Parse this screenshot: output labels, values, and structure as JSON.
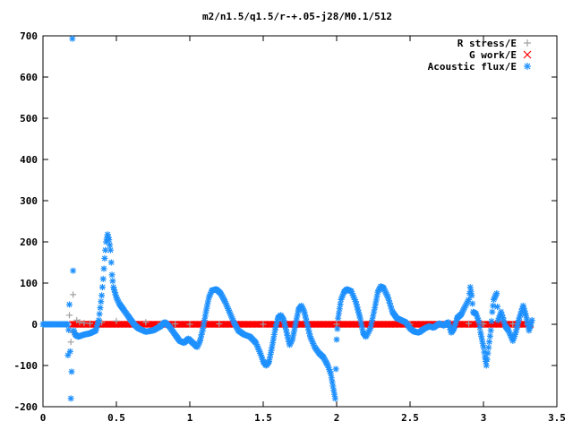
{
  "chart_data": {
    "type": "scatter",
    "title": "m2/n1.5/q1.5/r-+.05-j28/M0.1/512",
    "xlabel": "",
    "ylabel": "",
    "xlim": [
      0,
      3.5
    ],
    "ylim": [
      -200,
      700
    ],
    "xticks": [
      0,
      0.5,
      1,
      1.5,
      2,
      2.5,
      3,
      3.5
    ],
    "xtick_labels": [
      "0",
      "0.5",
      "1",
      "1.5",
      "2",
      "2.5",
      "3",
      "3.5"
    ],
    "yticks": [
      -200,
      -100,
      0,
      100,
      200,
      300,
      400,
      500,
      600,
      700
    ],
    "ytick_labels": [
      "-200",
      "-100",
      "0",
      "100",
      "200",
      "300",
      "400",
      "500",
      "600",
      "700"
    ],
    "grid": false,
    "legend_position": "top-right",
    "series": [
      {
        "name": "R stress/E",
        "marker": "plus",
        "color": "#a0a0a4",
        "points": [
          [
            0.18,
            22
          ],
          [
            0.19,
            -43
          ],
          [
            0.2,
            -20
          ],
          [
            0.205,
            72
          ],
          [
            0.21,
            -18
          ],
          [
            0.22,
            -22
          ],
          [
            0.23,
            10
          ],
          [
            0.25,
            5
          ],
          [
            0.28,
            3
          ],
          [
            0.32,
            2
          ],
          [
            0.4,
            5
          ],
          [
            0.5,
            8
          ],
          [
            0.6,
            6
          ],
          [
            0.7,
            5
          ],
          [
            0.8,
            2
          ],
          [
            0.9,
            1
          ],
          [
            1.0,
            0
          ],
          [
            1.2,
            1
          ],
          [
            1.5,
            0
          ],
          [
            2.0,
            0
          ],
          [
            2.5,
            0
          ],
          [
            2.9,
            2
          ],
          [
            3.0,
            1
          ],
          [
            3.2,
            1
          ],
          [
            3.3,
            0
          ]
        ]
      },
      {
        "name": "G work/E",
        "marker": "cross",
        "color": "#ff0000",
        "points": [
          [
            0.2,
            0
          ],
          [
            0.4,
            0
          ],
          [
            0.6,
            0
          ],
          [
            0.8,
            0
          ],
          [
            1.0,
            0
          ],
          [
            1.2,
            0
          ],
          [
            1.4,
            0
          ],
          [
            1.6,
            0
          ],
          [
            1.8,
            0
          ],
          [
            2.0,
            0
          ],
          [
            2.2,
            0
          ],
          [
            2.4,
            0
          ],
          [
            2.6,
            0
          ],
          [
            2.8,
            0
          ],
          [
            3.0,
            0
          ],
          [
            3.2,
            0
          ],
          [
            3.32,
            0
          ]
        ]
      },
      {
        "name": "Acoustic flux/E",
        "marker": "star",
        "color": "#1e90ff",
        "points": [
          [
            0.17,
            -75
          ],
          [
            0.18,
            48
          ],
          [
            0.19,
            -180
          ],
          [
            0.195,
            -115
          ],
          [
            0.2,
            693
          ],
          [
            0.205,
            130
          ],
          [
            0.21,
            -15
          ],
          [
            0.22,
            -25
          ],
          [
            0.24,
            -30
          ],
          [
            0.28,
            -25
          ],
          [
            0.32,
            -22
          ],
          [
            0.36,
            -15
          ],
          [
            0.38,
            10
          ],
          [
            0.4,
            70
          ],
          [
            0.41,
            110
          ],
          [
            0.42,
            160
          ],
          [
            0.43,
            200
          ],
          [
            0.44,
            218
          ],
          [
            0.45,
            205
          ],
          [
            0.46,
            180
          ],
          [
            0.47,
            120
          ],
          [
            0.48,
            90
          ],
          [
            0.5,
            65
          ],
          [
            0.52,
            50
          ],
          [
            0.55,
            35
          ],
          [
            0.58,
            20
          ],
          [
            0.6,
            10
          ],
          [
            0.62,
            0
          ],
          [
            0.65,
            -10
          ],
          [
            0.7,
            -18
          ],
          [
            0.75,
            -15
          ],
          [
            0.8,
            -5
          ],
          [
            0.83,
            5
          ],
          [
            0.86,
            -5
          ],
          [
            0.9,
            -25
          ],
          [
            0.93,
            -40
          ],
          [
            0.96,
            -45
          ],
          [
            0.99,
            -35
          ],
          [
            1.02,
            -45
          ],
          [
            1.05,
            -55
          ],
          [
            1.07,
            -40
          ],
          [
            1.09,
            -10
          ],
          [
            1.11,
            30
          ],
          [
            1.13,
            65
          ],
          [
            1.15,
            82
          ],
          [
            1.18,
            85
          ],
          [
            1.21,
            75
          ],
          [
            1.24,
            55
          ],
          [
            1.27,
            30
          ],
          [
            1.3,
            5
          ],
          [
            1.33,
            -15
          ],
          [
            1.37,
            -25
          ],
          [
            1.41,
            -30
          ],
          [
            1.45,
            -45
          ],
          [
            1.48,
            -70
          ],
          [
            1.5,
            -90
          ],
          [
            1.52,
            -100
          ],
          [
            1.54,
            -90
          ],
          [
            1.56,
            -55
          ],
          [
            1.58,
            -15
          ],
          [
            1.6,
            15
          ],
          [
            1.62,
            22
          ],
          [
            1.64,
            10
          ],
          [
            1.66,
            -20
          ],
          [
            1.68,
            -50
          ],
          [
            1.7,
            -35
          ],
          [
            1.72,
            0
          ],
          [
            1.74,
            35
          ],
          [
            1.76,
            45
          ],
          [
            1.78,
            30
          ],
          [
            1.8,
            0
          ],
          [
            1.82,
            -30
          ],
          [
            1.85,
            -55
          ],
          [
            1.88,
            -70
          ],
          [
            1.91,
            -80
          ],
          [
            1.94,
            -100
          ],
          [
            1.96,
            -120
          ],
          [
            1.975,
            -150
          ],
          [
            1.99,
            -180
          ],
          [
            2.0,
            -37
          ],
          [
            2.01,
            15
          ],
          [
            2.03,
            60
          ],
          [
            2.05,
            78
          ],
          [
            2.07,
            85
          ],
          [
            2.1,
            80
          ],
          [
            2.13,
            55
          ],
          [
            2.16,
            15
          ],
          [
            2.18,
            -20
          ],
          [
            2.2,
            -30
          ],
          [
            2.23,
            -10
          ],
          [
            2.26,
            40
          ],
          [
            2.28,
            78
          ],
          [
            2.3,
            92
          ],
          [
            2.32,
            88
          ],
          [
            2.35,
            65
          ],
          [
            2.38,
            30
          ],
          [
            2.41,
            15
          ],
          [
            2.44,
            10
          ],
          [
            2.47,
            5
          ],
          [
            2.5,
            -10
          ],
          [
            2.53,
            -18
          ],
          [
            2.56,
            -20
          ],
          [
            2.6,
            -10
          ],
          [
            2.63,
            -5
          ],
          [
            2.66,
            -8
          ],
          [
            2.7,
            2
          ],
          [
            2.73,
            -3
          ],
          [
            2.76,
            5
          ],
          [
            2.78,
            -20
          ],
          [
            2.8,
            -10
          ],
          [
            2.82,
            15
          ],
          [
            2.85,
            25
          ],
          [
            2.87,
            40
          ],
          [
            2.9,
            60
          ],
          [
            2.91,
            90
          ],
          [
            2.92,
            70
          ],
          [
            2.93,
            30
          ],
          [
            2.95,
            25
          ],
          [
            2.97,
            5
          ],
          [
            2.98,
            -20
          ],
          [
            3.0,
            -55
          ],
          [
            3.01,
            -80
          ],
          [
            3.02,
            -100
          ],
          [
            3.03,
            -70
          ],
          [
            3.05,
            -15
          ],
          [
            3.06,
            30
          ],
          [
            3.07,
            60
          ],
          [
            3.09,
            75
          ],
          [
            3.1,
            10
          ],
          [
            3.12,
            30
          ],
          [
            3.15,
            -5
          ],
          [
            3.17,
            -15
          ],
          [
            3.2,
            -40
          ],
          [
            3.22,
            -20
          ],
          [
            3.24,
            10
          ],
          [
            3.27,
            45
          ],
          [
            3.29,
            20
          ],
          [
            3.31,
            -15
          ],
          [
            3.32,
            -5
          ],
          [
            3.33,
            10
          ]
        ]
      }
    ]
  }
}
